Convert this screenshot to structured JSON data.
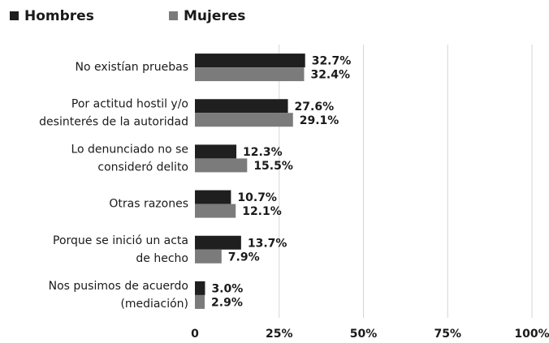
{
  "chart_data": {
    "type": "bar",
    "orientation": "horizontal",
    "categories": [
      [
        "No existían pruebas"
      ],
      [
        "Por actitud hostil y/o",
        "desinterés de la autoridad"
      ],
      [
        "Lo denunciado no se",
        "consideró delito"
      ],
      [
        "Otras razones"
      ],
      [
        "Porque se inició un acta",
        "de hecho"
      ],
      [
        "Nos pusimos de acuerdo",
        "(mediación)"
      ]
    ],
    "series": [
      {
        "name": "Hombres",
        "color": "#1f1f1f",
        "values": [
          32.7,
          27.6,
          12.3,
          10.7,
          13.7,
          3.0
        ],
        "value_labels": [
          "32.7%",
          "27.6%",
          "12.3%",
          "10.7%",
          "13.7%",
          "3.0%"
        ]
      },
      {
        "name": "Mujeres",
        "color": "#7b7b7b",
        "values": [
          32.4,
          29.1,
          15.5,
          12.1,
          7.9,
          2.9
        ],
        "value_labels": [
          "32.4%",
          "29.1%",
          "15.5%",
          "12.1%",
          "7.9%",
          "2.9%"
        ]
      }
    ],
    "xlim": [
      0,
      100
    ],
    "xticks": [
      0,
      {
        "value": 25,
        "label": "25%"
      },
      {
        "value": 50,
        "label": "50%"
      },
      {
        "value": 75,
        "label": "75%"
      },
      {
        "value": 100,
        "label": "100%"
      }
    ],
    "grid": true,
    "legend": "top-left"
  }
}
